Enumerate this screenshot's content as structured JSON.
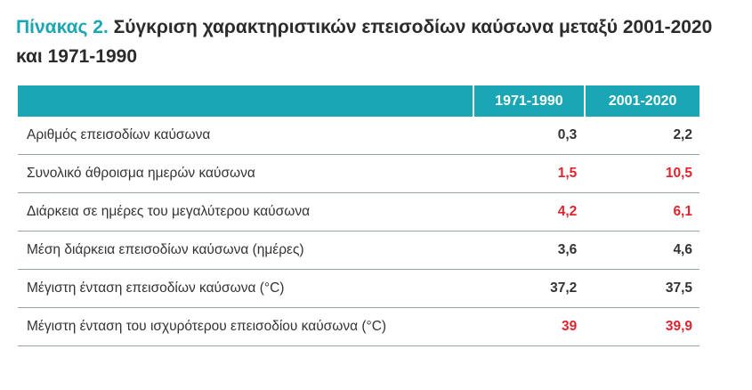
{
  "title": {
    "label": "Πίνακας 2.",
    "text": "Σύγκριση χαρακτηριστικών επεισοδίων καύσωνα μεταξύ 2001-2020 και 1971-1990"
  },
  "table": {
    "columns": [
      "",
      "1971-1990",
      "2001-2020"
    ],
    "rows": [
      {
        "label": "Αριθμός επεισοδίων καύσωνα",
        "v1971": "0,3",
        "v2001": "2,2"
      },
      {
        "label": "Συνολικό άθροισμα ημερών καύσωνα",
        "v1971": "1,5",
        "v2001": "10,5"
      },
      {
        "label": "Διάρκεια σε ημέρες του μεγαλύτερου καύσωνα",
        "v1971": "4,2",
        "v2001": "6,1"
      },
      {
        "label": "Μέση διάρκεια επεισοδίων καύσωνα (ημέρες)",
        "v1971": "3,6",
        "v2001": "4,6"
      },
      {
        "label": "Μέγιστη ένταση επεισοδίων καύσωνα (°C)",
        "v1971": "37,2",
        "v2001": "37,5"
      },
      {
        "label": "Μέγιστη ένταση του ισχυρότερου επεισοδίου καύσωνα (°C)",
        "v1971": "39",
        "v2001": "39,9"
      }
    ]
  },
  "colors": {
    "accent": "#1aa6b4",
    "highlight": "#e0242f",
    "text": "#333333"
  }
}
